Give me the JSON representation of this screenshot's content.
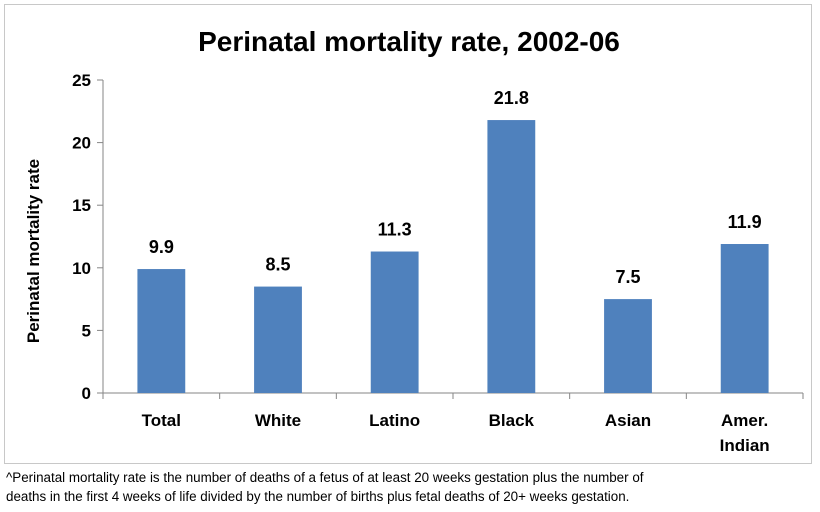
{
  "chart_data": {
    "type": "bar",
    "title": "Perinatal mortality rate, 2002-06",
    "ylabel": "Perinatal mortality rate",
    "xlabel": "",
    "categories": [
      "Total",
      "White",
      "Latino",
      "Black",
      "Asian",
      "Amer. Indian"
    ],
    "category_lines": [
      [
        "Total"
      ],
      [
        "White"
      ],
      [
        "Latino"
      ],
      [
        "Black"
      ],
      [
        "Asian"
      ],
      [
        "Amer.",
        "Indian"
      ]
    ],
    "values": [
      9.9,
      8.5,
      11.3,
      21.8,
      7.5,
      11.9
    ],
    "value_labels": [
      "9.9",
      "8.5",
      "11.3",
      "21.8",
      "7.5",
      "11.9"
    ],
    "ylim": [
      0,
      25
    ],
    "yticks": [
      0,
      5,
      10,
      15,
      20,
      25
    ],
    "grid": false,
    "bar_color": "#4f81bd",
    "legend": "none"
  },
  "footnote": {
    "line1": "^Perinatal mortality rate is the number of deaths of a fetus of at least 20 weeks gestation plus the number of",
    "line2": "deaths in the first 4 weeks of life divided by the number of births plus fetal deaths of 20+ weeks gestation."
  }
}
